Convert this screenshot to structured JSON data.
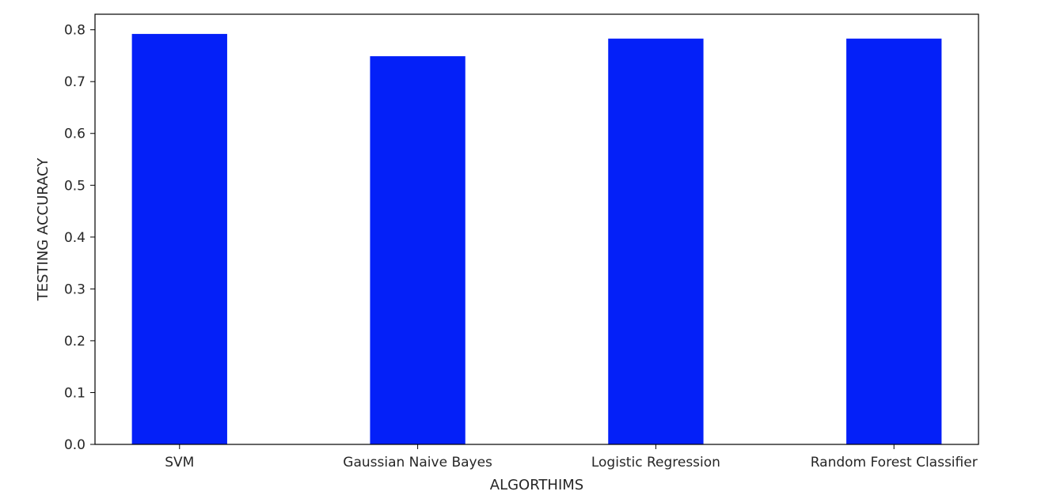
{
  "chart_data": {
    "type": "bar",
    "title": "",
    "xlabel": "ALGORTHIMS",
    "ylabel": "TESTING ACCURACY",
    "categories": [
      "SVM",
      "Gaussian Naive Bayes",
      "Logistic Regression",
      "Random Forest Classifier"
    ],
    "values": [
      0.792,
      0.749,
      0.783,
      0.783
    ],
    "ylim": [
      0.0,
      0.83
    ],
    "yticks": [
      "0.0",
      "0.1",
      "0.2",
      "0.3",
      "0.4",
      "0.5",
      "0.6",
      "0.7",
      "0.8"
    ],
    "grid": false,
    "legend": "none",
    "bar_color": "#0420f8"
  }
}
